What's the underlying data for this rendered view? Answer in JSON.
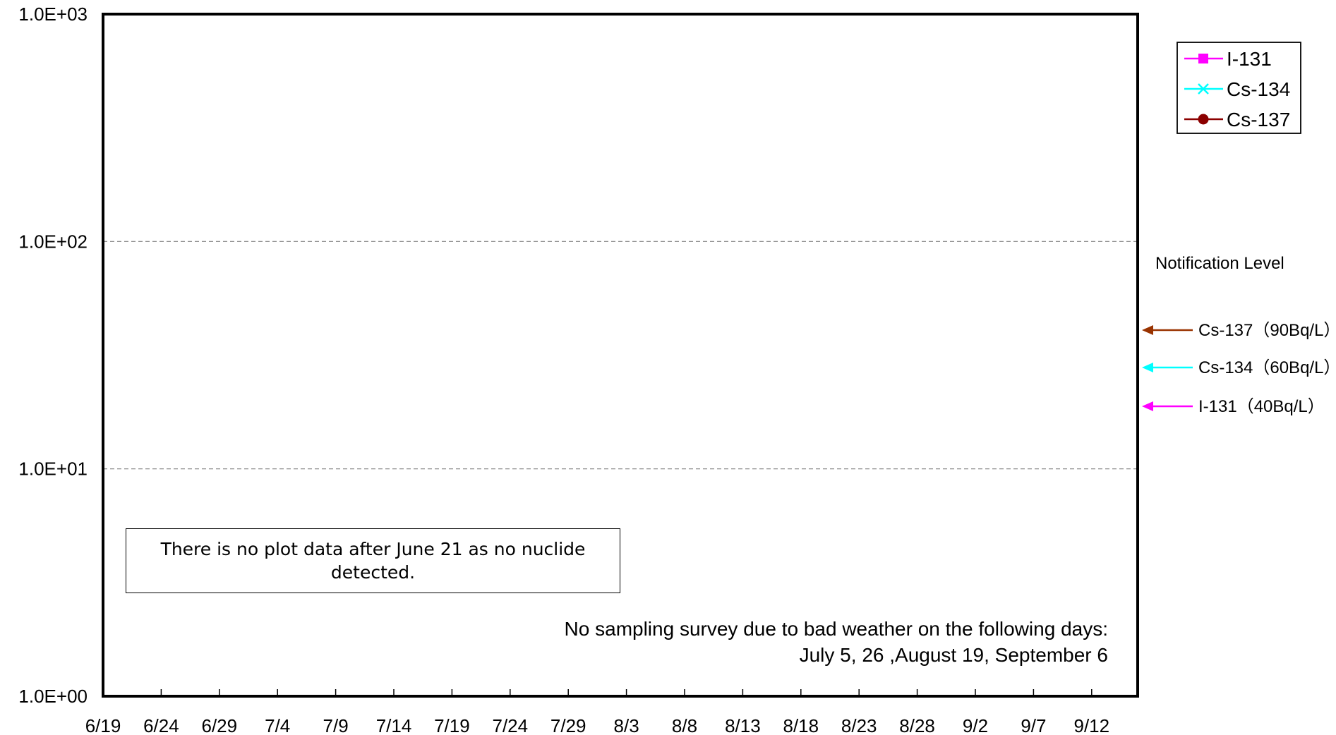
{
  "chart_data": {
    "type": "line",
    "title": "",
    "xlabel": "",
    "ylabel": "",
    "yscale": "log",
    "ylim": [
      1,
      1000
    ],
    "y_ticks": [
      "1.0E+00",
      "1.0E+01",
      "1.0E+02",
      "1.0E+03"
    ],
    "x_ticks": [
      "6/19",
      "6/24",
      "6/29",
      "7/4",
      "7/9",
      "7/14",
      "7/19",
      "7/24",
      "7/29",
      "8/3",
      "8/8",
      "8/13",
      "8/18",
      "8/23",
      "8/28",
      "9/2",
      "9/7",
      "9/12"
    ],
    "grid": "horizontal dashed",
    "legend_position": "top-right, outside plot",
    "series": [
      {
        "name": "I-131",
        "marker": "square",
        "color": "#ff00ff",
        "values": []
      },
      {
        "name": "Cs-134",
        "marker": "x",
        "color": "#00ffff",
        "values": []
      },
      {
        "name": "Cs-137",
        "marker": "circle",
        "color": "#8b0000",
        "values": []
      }
    ],
    "notification_title": "Notification Level",
    "notification_levels": [
      {
        "label": "Cs-137（90Bq/L）",
        "value": 90,
        "color": "#993300"
      },
      {
        "label": "Cs-134（60Bq/L）",
        "value": 60,
        "color": "#00ffff"
      },
      {
        "label": "I-131（40Bq/L）",
        "value": 40,
        "color": "#ff00ff"
      }
    ],
    "annotations": {
      "no_data_note": "There is no plot data after June 21 as no nuclide detected.",
      "weather_note_line1": "No sampling survey due to bad weather on the following days:",
      "weather_note_line2": "July 5, 26 ,August 19, September 6"
    }
  }
}
